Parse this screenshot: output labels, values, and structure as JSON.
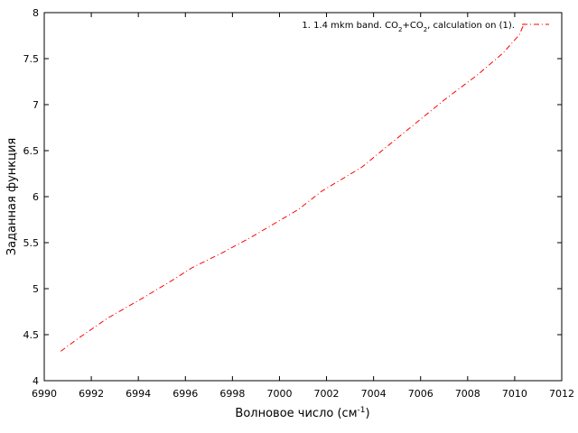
{
  "chart_data": {
    "type": "line",
    "xlabel_main": "Волновое число (см",
    "xlabel_sup": "-1",
    "xlabel_end": ")",
    "ylabel": "Заданная функция",
    "xlim": [
      6990,
      7012
    ],
    "ylim": [
      4,
      8
    ],
    "x_ticks": [
      6990,
      6992,
      6994,
      6996,
      6998,
      7000,
      7002,
      7004,
      7006,
      7008,
      7010,
      7012
    ],
    "y_ticks": [
      4,
      4.5,
      5,
      5.5,
      6,
      6.5,
      7,
      7.5,
      8
    ],
    "grid": false,
    "legend_position": "top-right",
    "series": [
      {
        "legend": {
          "prefix": "1. 1.4 mkm band. CO",
          "sub1": "2",
          "mid": "+CO",
          "sub2": "2",
          "suffix": ", calculation on (1)."
        },
        "color": "#ff0000",
        "line_style": "dash-dot",
        "x": [
          6990.7,
          6991.5,
          6992.7,
          6994.2,
          6995.5,
          6996.3,
          6997.5,
          6998.8,
          7000.0,
          7000.8,
          7001.8,
          7003.5,
          7004.5,
          7005.8,
          7007.0,
          7008.4,
          7009.5,
          7010.2,
          7010.4
        ],
        "y": [
          4.32,
          4.47,
          4.68,
          4.9,
          5.1,
          5.23,
          5.38,
          5.56,
          5.74,
          5.86,
          6.06,
          6.32,
          6.53,
          6.8,
          7.05,
          7.32,
          7.56,
          7.76,
          7.88
        ]
      }
    ]
  }
}
